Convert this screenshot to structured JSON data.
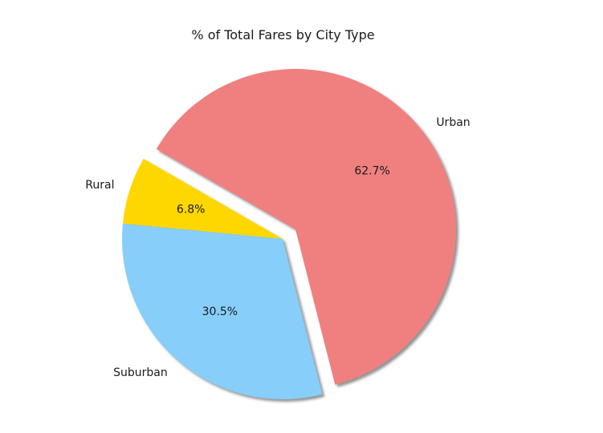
{
  "chart_data": {
    "type": "pie",
    "title": "% of Total Fares by City Type",
    "slices": [
      {
        "label": "Rural",
        "value": 6.8,
        "pct_label": "6.8%",
        "color": "#ffd700",
        "explode": false
      },
      {
        "label": "Suburban",
        "value": 30.5,
        "pct_label": "30.5%",
        "color": "#87cefa",
        "explode": false
      },
      {
        "label": "Urban",
        "value": 62.7,
        "pct_label": "62.7%",
        "color": "#f08080",
        "explode": true
      }
    ],
    "start_angle_deg": 150,
    "shadow": true,
    "legend": "none"
  }
}
